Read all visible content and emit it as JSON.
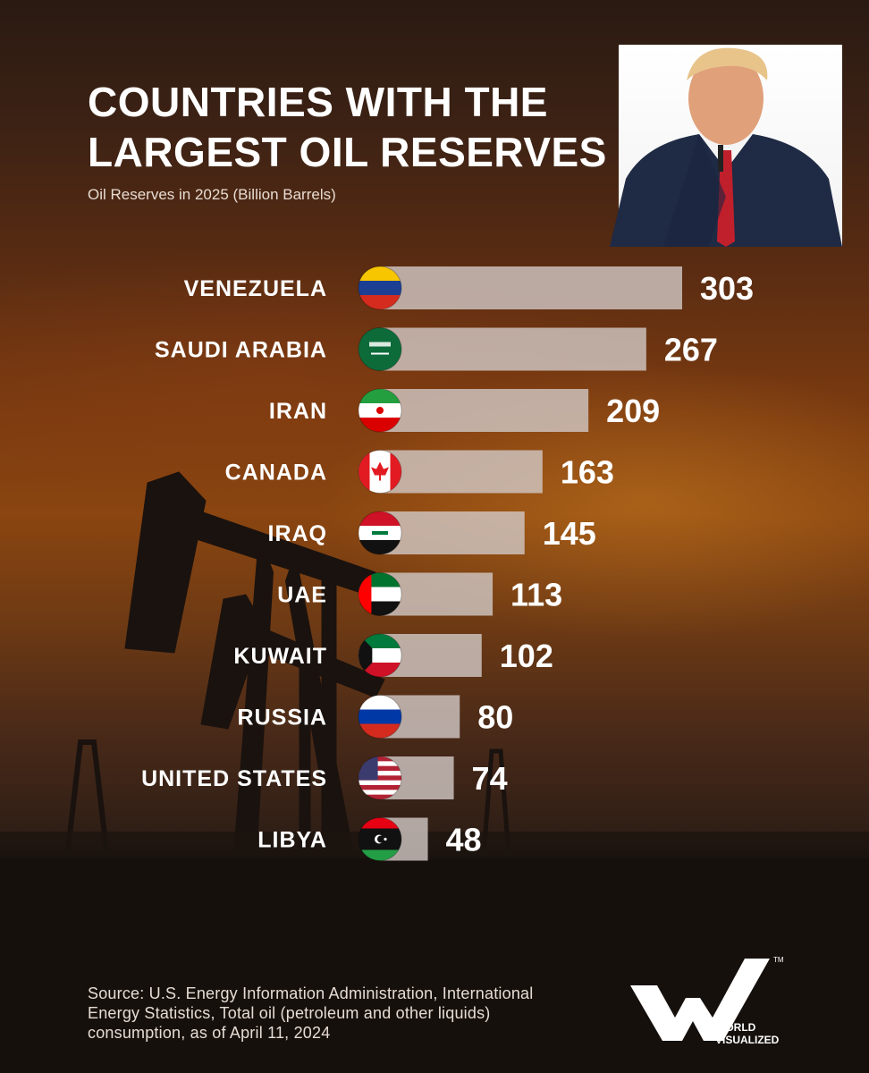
{
  "chart_data": {
    "type": "bar",
    "orientation": "horizontal",
    "title": "COUNTRIES WITH THE LARGEST OIL RESERVES",
    "subtitle": "Oil Reserves in 2025 (Billion Barrels)",
    "categories": [
      "VENEZUELA",
      "SAUDI ARABIA",
      "IRAN",
      "CANADA",
      "IRAQ",
      "UAE",
      "KUWAIT",
      "RUSSIA",
      "UNITED STATES",
      "LIBYA"
    ],
    "values": [
      303,
      267,
      209,
      163,
      145,
      113,
      102,
      80,
      74,
      48
    ],
    "value_labels": [
      "303",
      "267",
      "209",
      "163",
      "145",
      "113",
      "102",
      "80",
      "74",
      "48"
    ],
    "flags": [
      "venezuela-flag-icon",
      "saudi-arabia-flag-icon",
      "iran-flag-icon",
      "canada-flag-icon",
      "iraq-flag-icon",
      "uae-flag-icon",
      "kuwait-flag-icon",
      "russia-flag-icon",
      "united-states-flag-icon",
      "libya-flag-icon"
    ],
    "bar_color": "#cfc6c2",
    "grid": false,
    "legend": "none"
  },
  "source": "Source: U.S. Energy Information Administration, International Energy Statistics, Total oil (petroleum and other liquids) consumption, as of April 11, 2024",
  "logo": {
    "text_line1": "WORLD",
    "text_line2": "VISUALIZED",
    "mark": "TM"
  }
}
